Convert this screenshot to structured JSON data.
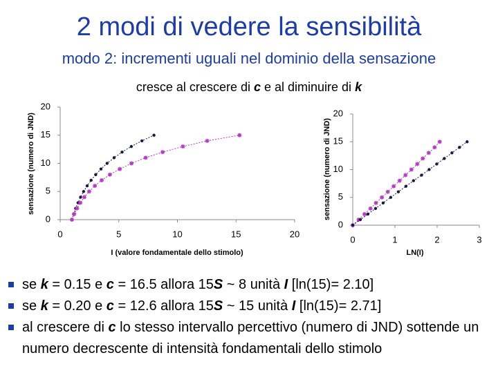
{
  "title": "2 modi di vedere la sensibilità",
  "subtitle": "modo 2: incrementi uguali nel dominio della sensazione",
  "caption": [
    "cresce al crescere di ",
    "c",
    " e al diminuire di ",
    "k"
  ],
  "bullets": [
    [
      "se ",
      "k",
      " = 0.15 e ",
      "c",
      " = 16.5 allora 15",
      "S",
      " ~ 8 unità ",
      "I",
      " [ln(15)= 2.10]"
    ],
    [
      "se ",
      "k",
      " = 0.20 e ",
      "c",
      " = 12.6 allora 15",
      "S",
      " ~ 15 unità ",
      "I",
      " [ln(15)= 2.71]"
    ],
    [
      "al crescere di ",
      "c",
      " lo stesso intervallo percettivo (numero di JND) sottende un numero decrescente di intensità fondamentali dello stimolo"
    ]
  ],
  "chart_data": [
    {
      "type": "scatter",
      "xlabel": "I (valore fondamentale dello stimolo)",
      "ylabel": "sensazione (numero di JND)",
      "xlim": [
        0,
        20
      ],
      "ylim": [
        0,
        20
      ],
      "xticks": [
        0,
        5,
        10,
        15,
        20
      ],
      "yticks": [
        0,
        5,
        10,
        15,
        20
      ],
      "series": [
        {
          "color": "#1a1a40",
          "marker": "circle",
          "x": [
            1,
            1.15,
            1.32,
            1.52,
            1.74,
            2.0,
            2.3,
            2.64,
            3.03,
            3.48,
            4.0,
            4.6,
            5.28,
            6.07,
            6.97,
            8.0
          ],
          "values": [
            0,
            1,
            2,
            3,
            4,
            5,
            6,
            7,
            8,
            9,
            10,
            11,
            12,
            13,
            14,
            15
          ]
        },
        {
          "color": "#b43cc3",
          "marker": "star",
          "x": [
            1,
            1.2,
            1.44,
            1.72,
            2.06,
            2.47,
            2.96,
            3.54,
            4.24,
            5.09,
            6.08,
            7.29,
            8.74,
            10.47,
            12.54,
            15.3
          ],
          "values": [
            0,
            1,
            2,
            3,
            4,
            5,
            6,
            7,
            8,
            9,
            10,
            11,
            12,
            13,
            14,
            15
          ]
        }
      ]
    },
    {
      "type": "scatter",
      "xlabel": "LN(I)",
      "ylabel": "sensazione (numero di JND)",
      "xlim": [
        0,
        3
      ],
      "ylim": [
        0,
        20
      ],
      "xticks": [
        0,
        1,
        2,
        3
      ],
      "yticks": [
        0,
        5,
        10,
        15,
        20
      ],
      "series": [
        {
          "color": "#b43cc3",
          "marker": "star",
          "x": [
            0,
            0.14,
            0.28,
            0.42,
            0.55,
            0.69,
            0.83,
            0.97,
            1.11,
            1.25,
            1.39,
            1.53,
            1.66,
            1.8,
            1.94,
            2.06
          ],
          "values": [
            0,
            1,
            2,
            3,
            4,
            5,
            6,
            7,
            8,
            9,
            10,
            11,
            12,
            13,
            14,
            15
          ]
        },
        {
          "color": "#1a1a40",
          "marker": "circle",
          "x": [
            0,
            0.18,
            0.36,
            0.54,
            0.72,
            0.9,
            1.08,
            1.26,
            1.44,
            1.63,
            1.81,
            1.99,
            2.17,
            2.35,
            2.53,
            2.71
          ],
          "values": [
            0,
            1,
            2,
            3,
            4,
            5,
            6,
            7,
            8,
            9,
            10,
            11,
            12,
            13,
            14,
            15
          ]
        }
      ]
    }
  ]
}
